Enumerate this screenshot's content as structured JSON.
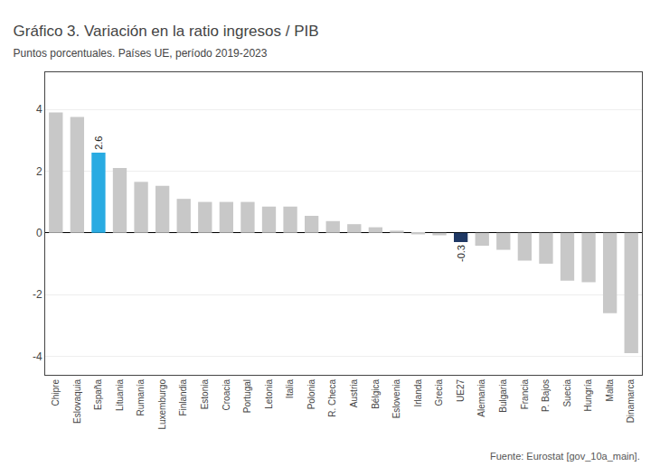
{
  "chart_data": {
    "type": "bar",
    "title": "Gráfico 3. Variación en la ratio ingresos / PIB",
    "subtitle": "Puntos porcentuales. Países UE, período 2019-2023",
    "annotations": [
      "Fuente: Eurostat [gov_10a_main]."
    ],
    "categories": [
      "Chipre",
      "Eslovaquia",
      "España",
      "Lituania",
      "Rumanía",
      "Luxemburgo",
      "Finlandia",
      "Estonia",
      "Croacia",
      "Portugal",
      "Letonia",
      "Italia",
      "Polonia",
      "R. Checa",
      "Austria",
      "Bélgica",
      "Eslovenia",
      "Irlanda",
      "Grecia",
      "UE27",
      "Alemania",
      "Bulgaria",
      "Francia",
      "P. Bajos",
      "Suecia",
      "Hungría",
      "Malta",
      "Dinamarca"
    ],
    "values": [
      3.9,
      3.75,
      2.6,
      2.1,
      1.65,
      1.52,
      1.1,
      1.0,
      1.0,
      1.0,
      0.85,
      0.85,
      0.55,
      0.38,
      0.28,
      0.18,
      0.07,
      -0.05,
      -0.08,
      -0.3,
      -0.42,
      -0.55,
      -0.9,
      -1.0,
      -1.55,
      -1.6,
      -2.6,
      -3.9
    ],
    "value_labels": [
      null,
      null,
      "2.6",
      null,
      null,
      null,
      null,
      null,
      null,
      null,
      null,
      null,
      null,
      null,
      null,
      null,
      null,
      null,
      null,
      "-0.3",
      null,
      null,
      null,
      null,
      null,
      null,
      null,
      null
    ],
    "colors": [
      "#c8c8c8",
      "#c8c8c8",
      "#29abe2",
      "#c8c8c8",
      "#c8c8c8",
      "#c8c8c8",
      "#c8c8c8",
      "#c8c8c8",
      "#c8c8c8",
      "#c8c8c8",
      "#c8c8c8",
      "#c8c8c8",
      "#c8c8c8",
      "#c8c8c8",
      "#c8c8c8",
      "#c8c8c8",
      "#c8c8c8",
      "#c8c8c8",
      "#c8c8c8",
      "#1f3864",
      "#c8c8c8",
      "#c8c8c8",
      "#c8c8c8",
      "#c8c8c8",
      "#c8c8c8",
      "#c8c8c8",
      "#c8c8c8",
      "#c8c8c8"
    ],
    "ylim": [
      -4.6,
      5.2
    ],
    "yticks": [
      -4,
      -2,
      0,
      2,
      4
    ],
    "grid": true
  }
}
